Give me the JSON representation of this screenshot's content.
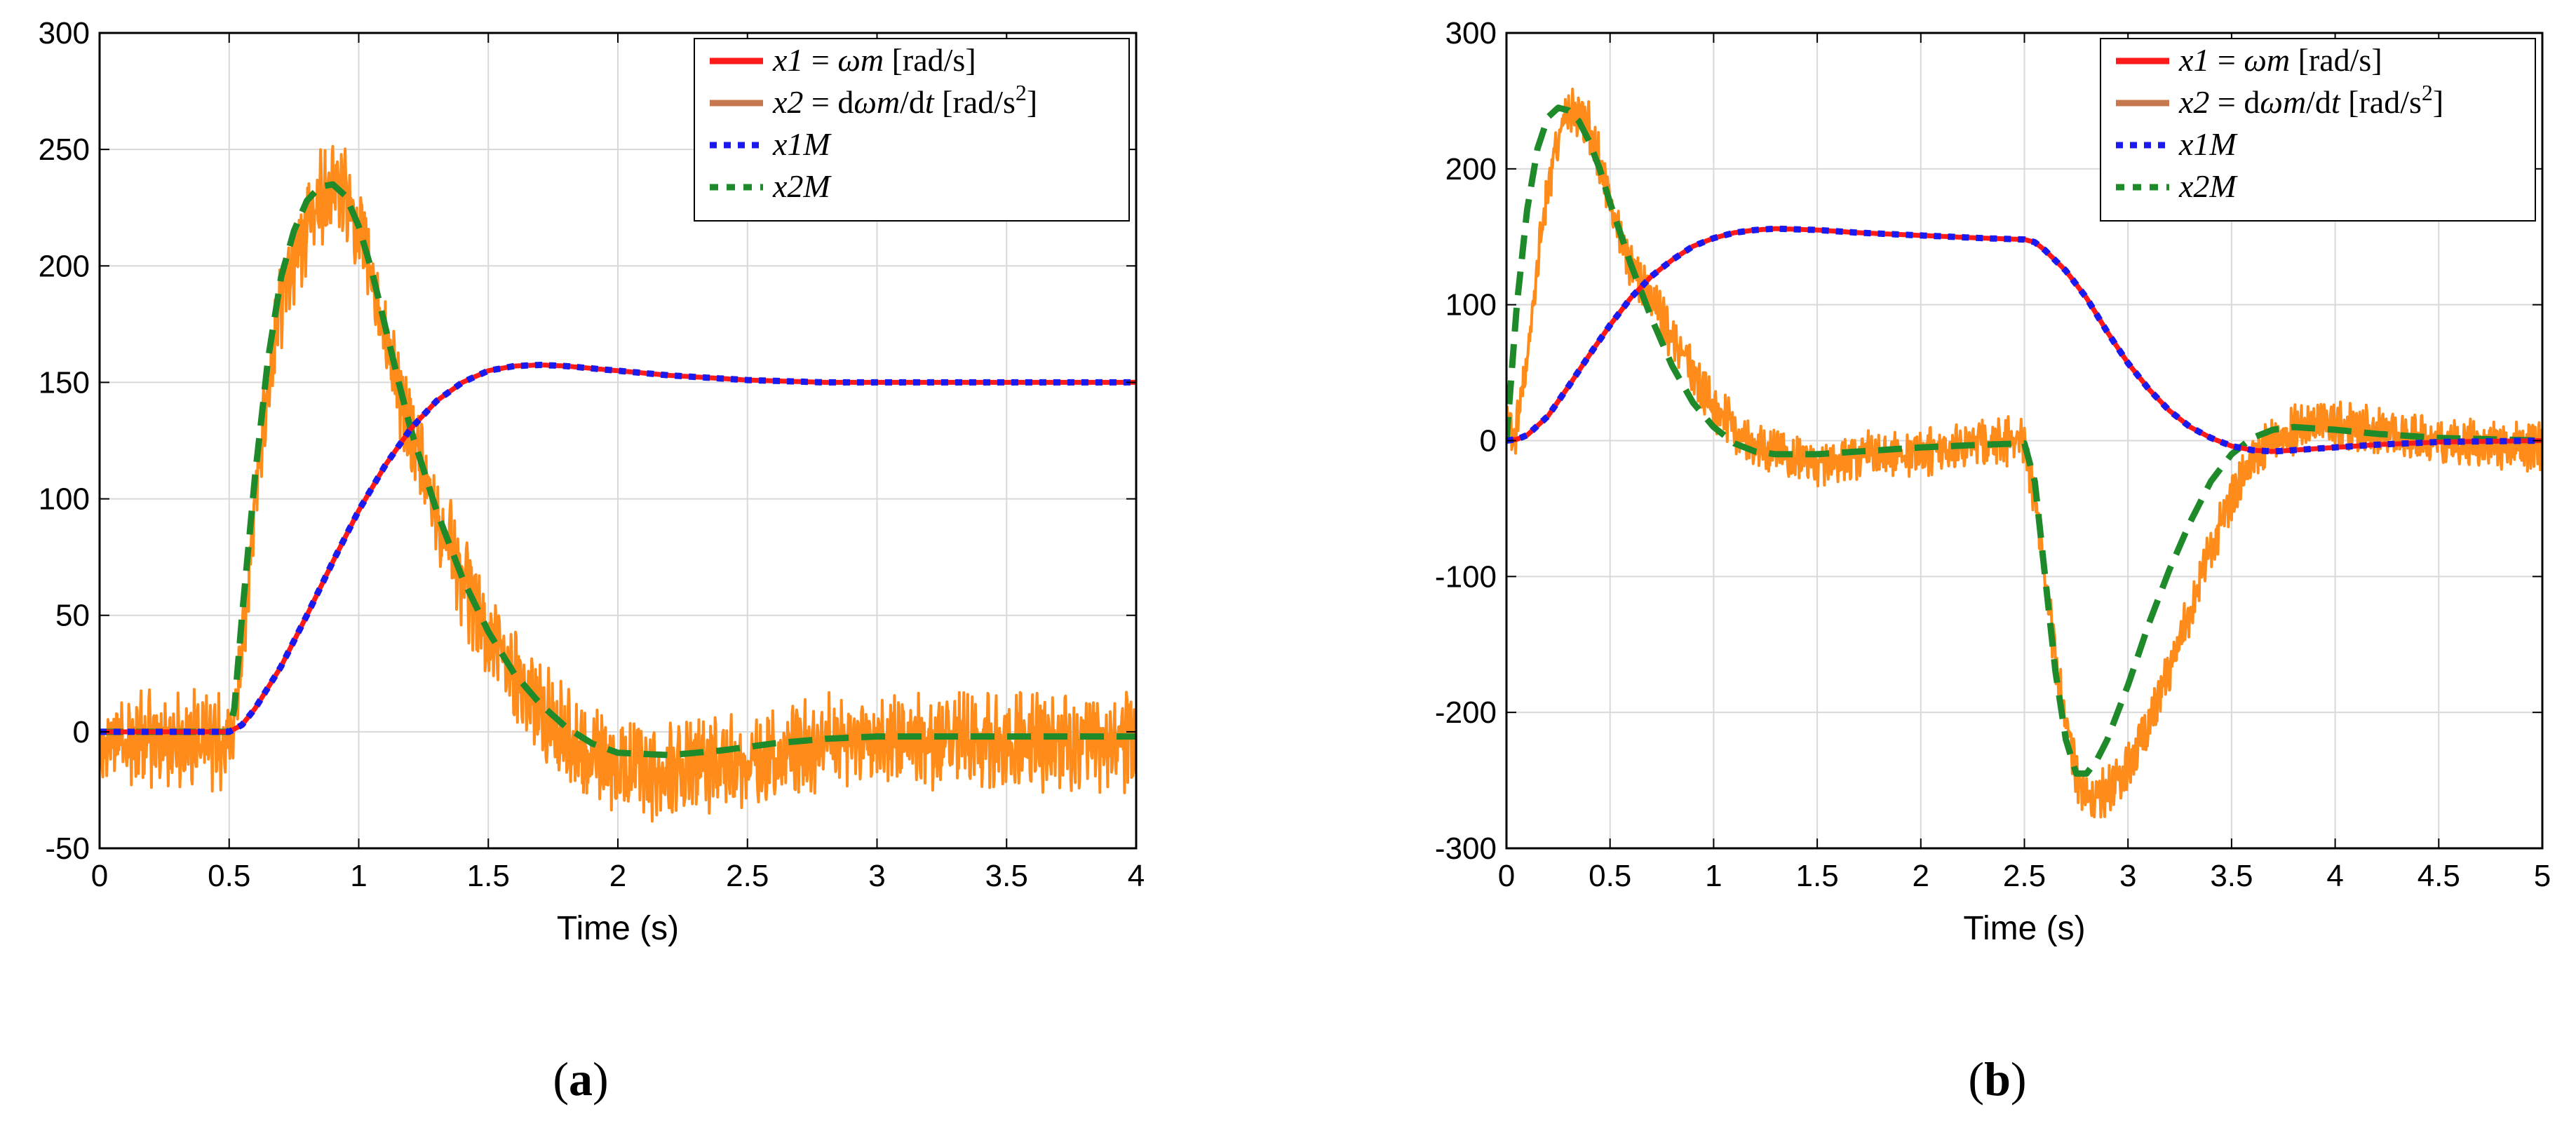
{
  "chart_data": [
    {
      "type": "line",
      "panel_label": "a",
      "xlabel": "Time (s)",
      "ylabel": "",
      "xlim": [
        0,
        4
      ],
      "ylim": [
        -50,
        300
      ],
      "xticks": [
        0,
        0.5,
        1,
        1.5,
        2,
        2.5,
        3,
        3.5,
        4
      ],
      "xtick_labels": [
        "0",
        "0.5",
        "1",
        "1.5",
        "2",
        "2.5",
        "3",
        "3.5",
        "4"
      ],
      "yticks": [
        -50,
        0,
        50,
        100,
        150,
        200,
        250,
        300
      ],
      "ytick_labels": [
        "-50",
        "0",
        "50",
        "100",
        "150",
        "200",
        "250",
        "300"
      ],
      "grid": true,
      "legend_position": "top-right",
      "series": [
        {
          "name": "x1 = ωm [rad/s]",
          "legend": {
            "main": "x1",
            "mid": " = ",
            "italic2": "ωm",
            "post": " [rad/s]"
          },
          "color": "#ff1a1a",
          "style": "solid",
          "x": [
            0,
            0.5,
            0.55,
            0.6,
            0.7,
            0.8,
            0.9,
            1.0,
            1.1,
            1.2,
            1.3,
            1.4,
            1.5,
            1.6,
            1.7,
            1.8,
            1.9,
            2.0,
            2.2,
            2.5,
            2.8,
            3.0,
            3.5,
            4.0
          ],
          "y": [
            0,
            0,
            3,
            10,
            28,
            50,
            73,
            95,
            114,
            130,
            142,
            150,
            155,
            157,
            157.5,
            157,
            156,
            155,
            153,
            151,
            150,
            150,
            150,
            150
          ]
        },
        {
          "name": "x2 = dωm/dt [rad/s²]",
          "legend": {
            "main": "x2",
            "mid": " = d",
            "italic2": "ωm",
            "post2": "/d",
            "italic3": "t",
            "post": " [rad/s",
            "sup": "2",
            "post_end": "]"
          },
          "color": "#ff8c1a",
          "style": "solid",
          "noisy": true,
          "x": [
            0,
            0.5,
            0.52,
            0.55,
            0.6,
            0.65,
            0.7,
            0.75,
            0.8,
            0.85,
            0.9,
            0.95,
            1.0,
            1.05,
            1.1,
            1.15,
            1.2,
            1.3,
            1.4,
            1.5,
            1.6,
            1.7,
            1.8,
            1.9,
            2.0,
            2.2,
            2.4,
            2.6,
            2.8,
            3.0,
            3.5,
            4.0
          ],
          "y": [
            -3,
            -4,
            0,
            40,
            100,
            150,
            185,
            200,
            215,
            230,
            235,
            230,
            215,
            195,
            170,
            148,
            128,
            93,
            65,
            42,
            25,
            10,
            -2,
            -10,
            -15,
            -17,
            -15,
            -10,
            -5,
            -4,
            -4,
            -4
          ]
        },
        {
          "name": "x1M",
          "legend": {
            "main": "x1M"
          },
          "color": "#1a1aee",
          "style": "dotted",
          "x": [
            0,
            0.5,
            0.55,
            0.6,
            0.7,
            0.8,
            0.9,
            1.0,
            1.1,
            1.2,
            1.3,
            1.4,
            1.5,
            1.6,
            1.7,
            1.8,
            1.9,
            2.0,
            2.2,
            2.5,
            2.8,
            3.0,
            3.5,
            4.0
          ],
          "y": [
            0,
            0,
            3,
            10,
            28,
            50,
            73,
            95,
            114,
            130,
            142,
            150,
            155,
            157,
            157.5,
            157,
            156,
            155,
            153,
            151,
            150,
            150,
            150,
            150
          ]
        },
        {
          "name": "x2M",
          "legend": {
            "main": "x2M"
          },
          "color": "#1f8a2a",
          "style": "dashed",
          "x": [
            0,
            0.5,
            0.52,
            0.55,
            0.6,
            0.65,
            0.7,
            0.75,
            0.8,
            0.85,
            0.9,
            0.95,
            1.0,
            1.05,
            1.1,
            1.15,
            1.2,
            1.3,
            1.4,
            1.5,
            1.6,
            1.7,
            1.8,
            1.9,
            2.0,
            2.2,
            2.4,
            2.6,
            2.8,
            3.0,
            3.5,
            4.0
          ],
          "y": [
            0,
            0,
            10,
            50,
            110,
            160,
            195,
            215,
            228,
            234,
            235,
            230,
            217,
            198,
            175,
            152,
            130,
            95,
            66,
            43,
            25,
            12,
            2,
            -5,
            -9,
            -10,
            -8,
            -5,
            -3,
            -2,
            -2,
            -2
          ]
        }
      ]
    },
    {
      "type": "line",
      "panel_label": "b",
      "xlabel": "Time (s)",
      "ylabel": "",
      "xlim": [
        0,
        5
      ],
      "ylim": [
        -300,
        300
      ],
      "xticks": [
        0,
        0.5,
        1,
        1.5,
        2,
        2.5,
        3,
        3.5,
        4,
        4.5,
        5
      ],
      "xtick_labels": [
        "0",
        "0.5",
        "1",
        "1.5",
        "2",
        "2.5",
        "3",
        "3.5",
        "4",
        "4.5",
        "5"
      ],
      "yticks": [
        -300,
        -200,
        -100,
        0,
        100,
        200,
        300
      ],
      "ytick_labels": [
        "-300",
        "-200",
        "-100",
        "0",
        "100",
        "200",
        "300"
      ],
      "grid": true,
      "legend_position": "top-right",
      "series": [
        {
          "name": "x1 = ωm [rad/s]",
          "legend": {
            "main": "x1",
            "mid": " = ",
            "italic2": "ωm",
            "post": " [rad/s]"
          },
          "color": "#ff1a1a",
          "style": "solid",
          "x": [
            0,
            0.05,
            0.1,
            0.2,
            0.3,
            0.4,
            0.5,
            0.6,
            0.7,
            0.8,
            0.9,
            1.0,
            1.1,
            1.2,
            1.3,
            1.5,
            1.7,
            2.0,
            2.3,
            2.5,
            2.55,
            2.6,
            2.7,
            2.8,
            2.9,
            3.0,
            3.1,
            3.2,
            3.3,
            3.4,
            3.5,
            3.6,
            3.7,
            3.8,
            4.0,
            4.2,
            4.5,
            5.0
          ],
          "y": [
            0,
            1,
            4,
            18,
            40,
            63,
            85,
            105,
            121,
            133,
            143,
            149,
            153,
            155,
            156,
            155,
            153,
            151,
            149,
            148,
            146,
            140,
            125,
            105,
            80,
            57,
            38,
            22,
            10,
            2,
            -4,
            -7,
            -8,
            -7,
            -5,
            -3,
            -1,
            0
          ]
        },
        {
          "name": "x2 = dωm/dt [rad/s²]",
          "legend": {
            "main": "x2",
            "mid": " = d",
            "italic2": "ωm",
            "post2": "/d",
            "italic3": "t",
            "post": " [rad/s",
            "sup": "2",
            "post_end": "]"
          },
          "color": "#ff8c1a",
          "style": "solid",
          "noisy": true,
          "x": [
            0,
            0.02,
            0.05,
            0.1,
            0.15,
            0.2,
            0.25,
            0.3,
            0.35,
            0.4,
            0.45,
            0.5,
            0.55,
            0.6,
            0.7,
            0.8,
            0.9,
            1.0,
            1.1,
            1.2,
            1.3,
            1.5,
            1.7,
            2.0,
            2.3,
            2.5,
            2.55,
            2.6,
            2.65,
            2.7,
            2.75,
            2.8,
            2.85,
            2.9,
            3.0,
            3.1,
            3.2,
            3.3,
            3.4,
            3.5,
            3.6,
            3.7,
            3.8,
            4.0,
            4.2,
            4.5,
            5.0
          ],
          "y": [
            20,
            5,
            10,
            60,
            130,
            185,
            225,
            240,
            243,
            230,
            205,
            175,
            150,
            130,
            105,
            75,
            50,
            25,
            8,
            -5,
            -10,
            -15,
            -12,
            -8,
            -2,
            0,
            -40,
            -100,
            -160,
            -210,
            -245,
            -262,
            -262,
            -258,
            -240,
            -210,
            -170,
            -125,
            -80,
            -40,
            -15,
            0,
            8,
            12,
            6,
            0,
            -5
          ]
        },
        {
          "name": "x1M",
          "legend": {
            "main": "x1M"
          },
          "color": "#1a1aee",
          "style": "dotted",
          "x": [
            0,
            0.05,
            0.1,
            0.2,
            0.3,
            0.4,
            0.5,
            0.6,
            0.7,
            0.8,
            0.9,
            1.0,
            1.1,
            1.2,
            1.3,
            1.5,
            1.7,
            2.0,
            2.3,
            2.5,
            2.55,
            2.6,
            2.7,
            2.8,
            2.9,
            3.0,
            3.1,
            3.2,
            3.3,
            3.4,
            3.5,
            3.6,
            3.7,
            3.8,
            4.0,
            4.2,
            4.5,
            5.0
          ],
          "y": [
            0,
            1,
            4,
            18,
            40,
            63,
            85,
            105,
            121,
            133,
            143,
            149,
            153,
            155,
            156,
            155,
            153,
            151,
            149,
            148,
            146,
            140,
            125,
            105,
            80,
            57,
            38,
            22,
            10,
            2,
            -4,
            -7,
            -8,
            -7,
            -5,
            -3,
            -1,
            0
          ]
        },
        {
          "name": "x2M",
          "legend": {
            "main": "x2M"
          },
          "color": "#1f8a2a",
          "style": "dashed",
          "x": [
            0,
            0.02,
            0.05,
            0.1,
            0.15,
            0.2,
            0.25,
            0.3,
            0.35,
            0.4,
            0.45,
            0.5,
            0.6,
            0.7,
            0.8,
            0.9,
            1.0,
            1.1,
            1.2,
            1.3,
            1.5,
            1.7,
            2.0,
            2.3,
            2.5,
            2.55,
            2.6,
            2.65,
            2.7,
            2.75,
            2.8,
            2.85,
            2.9,
            3.0,
            3.1,
            3.2,
            3.3,
            3.4,
            3.5,
            3.6,
            3.7,
            3.8,
            4.0,
            4.2,
            4.5,
            5.0
          ],
          "y": [
            0,
            40,
            100,
            170,
            215,
            238,
            245,
            243,
            235,
            220,
            200,
            175,
            130,
            90,
            55,
            28,
            10,
            -2,
            -8,
            -10,
            -10,
            -8,
            -5,
            -3,
            -2,
            -30,
            -100,
            -170,
            -220,
            -245,
            -245,
            -235,
            -220,
            -180,
            -135,
            -95,
            -60,
            -30,
            -10,
            2,
            8,
            10,
            8,
            5,
            2,
            0
          ]
        }
      ]
    }
  ]
}
